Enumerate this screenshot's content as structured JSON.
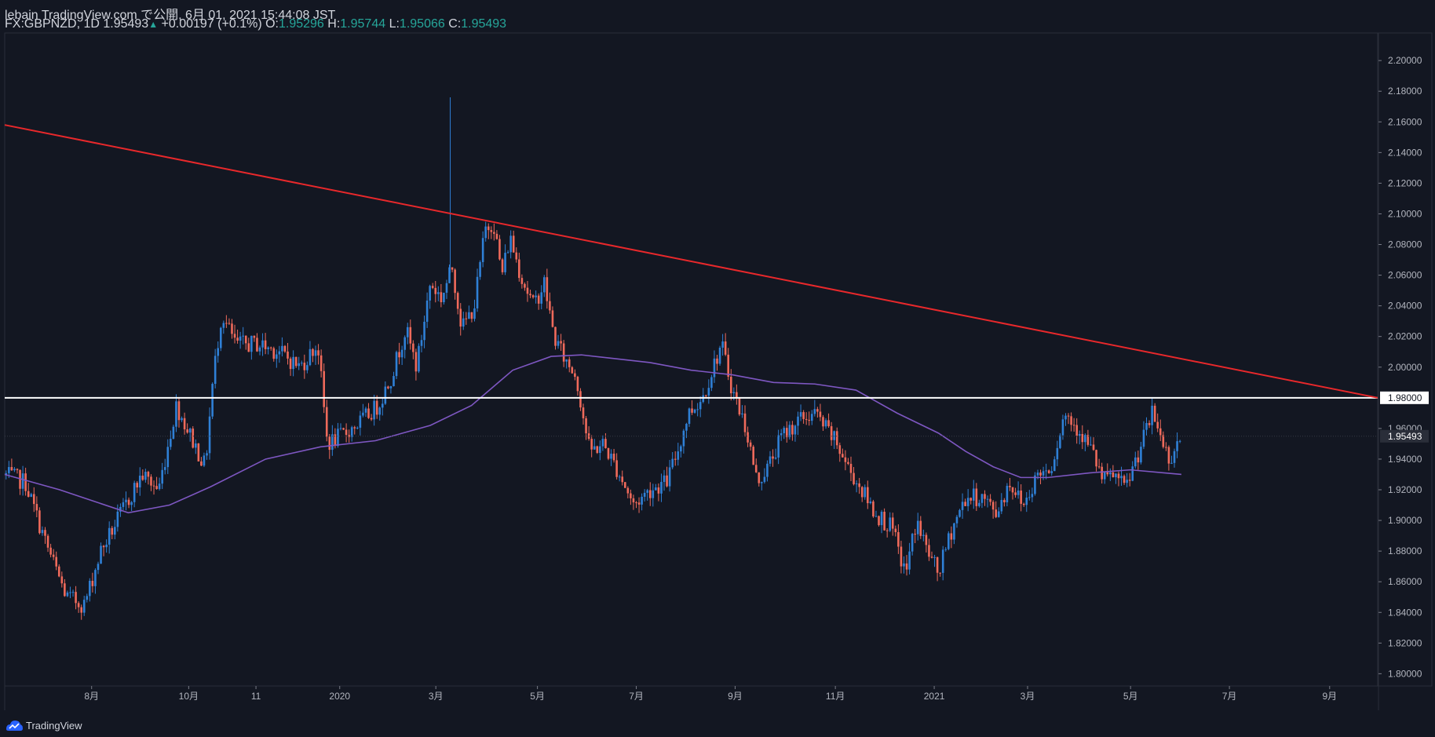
{
  "header": {
    "published": "lebain TradingView.com で公開, 6月 01, 2021 15:44:08 JST",
    "symbol": "FX:GBPNZD, 1D",
    "last": "1.95493",
    "change_arrow": "▲",
    "change": "+0.00197 (+0.1%)",
    "o_label": "O:",
    "o_value": "1.95296",
    "h_label": "H:",
    "h_value": "1.95744",
    "l_label": "L:",
    "l_value": "1.95066",
    "c_label": "C:",
    "c_value": "1.95493"
  },
  "footer": {
    "brand": "TradingView",
    "logo_icon": "tradingview-logo-icon"
  },
  "colors": {
    "background": "#131722",
    "up": "#2f80d6",
    "down": "#ef6a5b",
    "ma": "#7e57c2",
    "trendline": "#e8282b",
    "hline": "#ffffff",
    "axis_text": "#b2b5be",
    "change_up": "#26a69a"
  },
  "chart_data": {
    "type": "candlestick",
    "instrument": "FX:GBPNZD",
    "timeframe": "1D",
    "y_range": [
      1.792,
      2.218
    ],
    "y_ticks": [
      "2.20000",
      "2.18000",
      "2.16000",
      "2.14000",
      "2.12000",
      "2.10000",
      "2.08000",
      "2.06000",
      "2.04000",
      "2.02000",
      "2.00000",
      "1.98000",
      "1.96000",
      "1.94000",
      "1.92000",
      "1.90000",
      "1.88000",
      "1.86000",
      "1.84000",
      "1.82000",
      "1.80000"
    ],
    "x_ticks": [
      {
        "label": "8月",
        "t": 0.0633
      },
      {
        "label": "10月",
        "t": 0.134
      },
      {
        "label": "11",
        "t": 0.183
      },
      {
        "label": "2020",
        "t": 0.244
      },
      {
        "label": "3月",
        "t": 0.314
      },
      {
        "label": "5月",
        "t": 0.388
      },
      {
        "label": "7月",
        "t": 0.46
      },
      {
        "label": "9月",
        "t": 0.532
      },
      {
        "label": "11月",
        "t": 0.605
      },
      {
        "label": "2021",
        "t": 0.677
      },
      {
        "label": "3月",
        "t": 0.745
      },
      {
        "label": "5月",
        "t": 0.82
      },
      {
        "label": "7月",
        "t": 0.892
      },
      {
        "label": "9月",
        "t": 0.965
      }
    ],
    "data_end_t": 0.857,
    "price_path": [
      [
        0.0,
        1.93
      ],
      [
        0.015,
        1.925
      ],
      [
        0.03,
        1.885
      ],
      [
        0.045,
        1.85
      ],
      [
        0.058,
        1.845
      ],
      [
        0.07,
        1.88
      ],
      [
        0.085,
        1.905
      ],
      [
        0.1,
        1.93
      ],
      [
        0.112,
        1.92
      ],
      [
        0.125,
        1.975
      ],
      [
        0.138,
        1.95
      ],
      [
        0.146,
        1.935
      ],
      [
        0.152,
        1.995
      ],
      [
        0.158,
        2.035
      ],
      [
        0.168,
        2.015
      ],
      [
        0.185,
        2.015
      ],
      [
        0.2,
        2.01
      ],
      [
        0.215,
        2.0
      ],
      [
        0.228,
        2.015
      ],
      [
        0.235,
        1.95
      ],
      [
        0.245,
        1.955
      ],
      [
        0.26,
        1.965
      ],
      [
        0.272,
        1.975
      ],
      [
        0.282,
        1.995
      ],
      [
        0.292,
        2.025
      ],
      [
        0.3,
        2.0
      ],
      [
        0.31,
        2.055
      ],
      [
        0.318,
        2.045
      ],
      [
        0.326,
        2.065
      ],
      [
        0.333,
        2.025
      ],
      [
        0.342,
        2.04
      ],
      [
        0.35,
        2.09
      ],
      [
        0.356,
        2.095
      ],
      [
        0.362,
        2.06
      ],
      [
        0.368,
        2.085
      ],
      [
        0.376,
        2.06
      ],
      [
        0.385,
        2.04
      ],
      [
        0.393,
        2.055
      ],
      [
        0.4,
        2.02
      ],
      [
        0.408,
        2.005
      ],
      [
        0.416,
        1.995
      ],
      [
        0.426,
        1.945
      ],
      [
        0.436,
        1.95
      ],
      [
        0.448,
        1.93
      ],
      [
        0.458,
        1.91
      ],
      [
        0.47,
        1.92
      ],
      [
        0.482,
        1.925
      ],
      [
        0.49,
        1.945
      ],
      [
        0.498,
        1.97
      ],
      [
        0.508,
        1.98
      ],
      [
        0.516,
        2.0
      ],
      [
        0.522,
        2.015
      ],
      [
        0.53,
        1.985
      ],
      [
        0.54,
        1.96
      ],
      [
        0.548,
        1.925
      ],
      [
        0.556,
        1.935
      ],
      [
        0.566,
        1.955
      ],
      [
        0.578,
        1.965
      ],
      [
        0.59,
        1.97
      ],
      [
        0.598,
        1.96
      ],
      [
        0.606,
        1.95
      ],
      [
        0.614,
        1.935
      ],
      [
        0.624,
        1.92
      ],
      [
        0.634,
        1.905
      ],
      [
        0.646,
        1.895
      ],
      [
        0.656,
        1.865
      ],
      [
        0.664,
        1.9
      ],
      [
        0.672,
        1.88
      ],
      [
        0.68,
        1.865
      ],
      [
        0.69,
        1.895
      ],
      [
        0.7,
        1.915
      ],
      [
        0.712,
        1.915
      ],
      [
        0.722,
        1.905
      ],
      [
        0.732,
        1.925
      ],
      [
        0.742,
        1.91
      ],
      [
        0.752,
        1.93
      ],
      [
        0.762,
        1.935
      ],
      [
        0.772,
        1.97
      ],
      [
        0.782,
        1.96
      ],
      [
        0.792,
        1.945
      ],
      [
        0.8,
        1.925
      ],
      [
        0.808,
        1.93
      ],
      [
        0.816,
        1.92
      ],
      [
        0.826,
        1.945
      ],
      [
        0.836,
        1.97
      ],
      [
        0.842,
        1.955
      ],
      [
        0.848,
        1.94
      ],
      [
        0.857,
        1.955
      ]
    ],
    "ma_path": [
      [
        0.0,
        1.93
      ],
      [
        0.04,
        1.92
      ],
      [
        0.09,
        1.905
      ],
      [
        0.12,
        1.91
      ],
      [
        0.15,
        1.922
      ],
      [
        0.19,
        1.94
      ],
      [
        0.23,
        1.948
      ],
      [
        0.27,
        1.952
      ],
      [
        0.31,
        1.962
      ],
      [
        0.34,
        1.975
      ],
      [
        0.37,
        1.998
      ],
      [
        0.398,
        2.007
      ],
      [
        0.42,
        2.008
      ],
      [
        0.44,
        2.006
      ],
      [
        0.47,
        2.003
      ],
      [
        0.5,
        1.998
      ],
      [
        0.53,
        1.995
      ],
      [
        0.56,
        1.99
      ],
      [
        0.59,
        1.989
      ],
      [
        0.62,
        1.985
      ],
      [
        0.65,
        1.97
      ],
      [
        0.68,
        1.957
      ],
      [
        0.7,
        1.945
      ],
      [
        0.72,
        1.935
      ],
      [
        0.74,
        1.928
      ],
      [
        0.76,
        1.928
      ],
      [
        0.79,
        1.931
      ],
      [
        0.82,
        1.933
      ],
      [
        0.845,
        1.931
      ],
      [
        0.857,
        1.93
      ]
    ],
    "trendline": {
      "from": [
        0.0,
        2.158
      ],
      "to": [
        1.0,
        1.98
      ]
    },
    "hline": {
      "value": 1.98,
      "label": "1.98000"
    },
    "last_price": {
      "value": 1.95493,
      "label": "1.95493"
    },
    "hidden_spike": {
      "t": 0.3245,
      "high": 2.176
    },
    "grid": false,
    "legend": "top-left"
  }
}
